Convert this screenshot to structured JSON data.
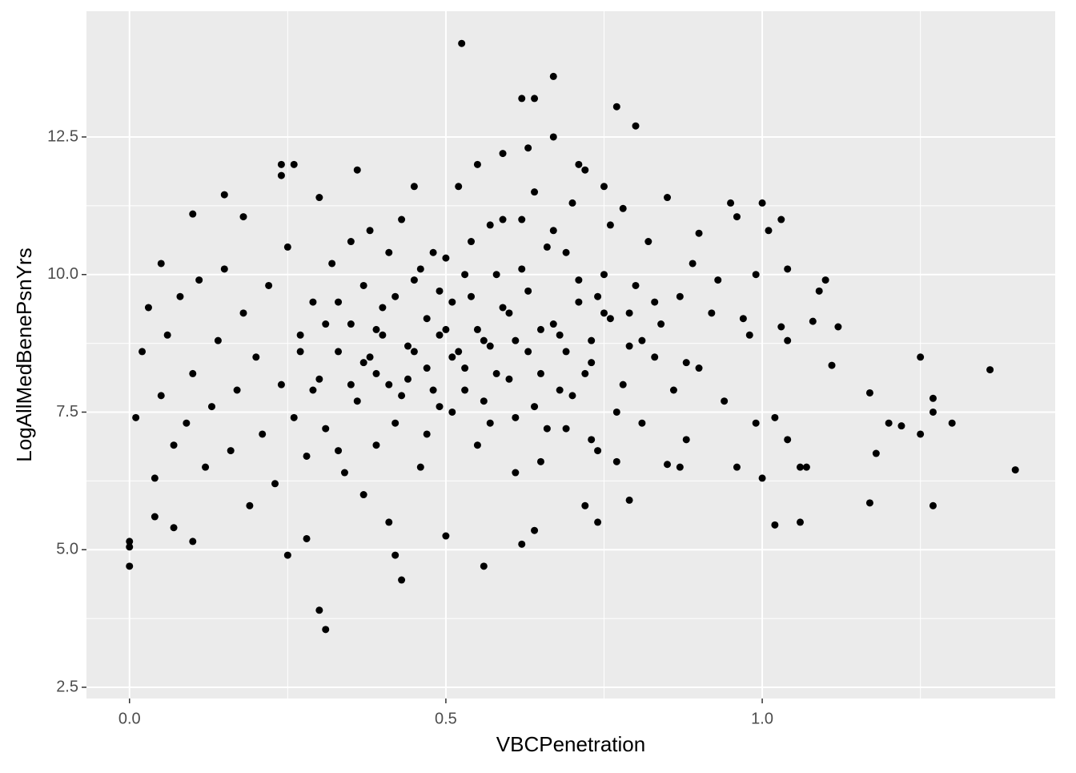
{
  "chart_data": {
    "type": "scatter",
    "x_label": "VBCPenetration",
    "y_label": "LogAllMedBenePsnYrs",
    "color": "#000000",
    "background": "#ebebeb",
    "grid": true,
    "xlim": [
      -0.068,
      1.463
    ],
    "ylim": [
      2.296,
      14.785
    ],
    "xticks": [
      {
        "value": 0,
        "label": "0.0"
      },
      0.5,
      {
        "value": 1,
        "label": "1.0"
      }
    ],
    "yticks": [
      2.5,
      {
        "value": 5,
        "label": "5.0"
      },
      7.5,
      {
        "value": 10,
        "label": "10.0"
      },
      12.5
    ],
    "xminor": [
      0.25,
      0.75,
      1.25
    ],
    "yminor": [
      3.75,
      6.25,
      8.75,
      11.25
    ],
    "x": [
      0,
      0,
      0,
      0.525,
      0.67,
      0.31,
      0.3,
      0.43,
      0.56,
      1.4,
      1.36,
      1.3,
      1.27,
      1.27,
      1.27,
      1.25,
      1.25,
      1.22,
      1.2,
      1.18,
      1.17,
      1.17,
      1.12,
      1.1,
      1.09,
      1.11,
      1.08,
      1.06,
      1.07,
      1.06,
      1.03,
      1.02,
      1.04,
      1.0,
      1.03,
      0.96,
      1.0,
      1.02,
      0.99,
      0.98,
      0.97,
      0.99,
      0.96,
      0.94,
      1.04,
      1.04,
      1.01,
      0.95,
      0.77,
      0.62,
      0.64,
      0.8,
      0.26,
      0.24,
      0.1,
      0.15,
      0.18,
      0.36,
      0.3,
      0.24,
      0.05,
      0.1,
      0.07,
      0.04,
      0.25,
      0.42,
      0.62,
      0.64,
      0.5,
      0.41,
      0.28,
      0.72,
      0.74,
      0.79,
      0.87,
      0.85,
      0.88,
      0.9,
      0.92,
      0.93,
      0.9,
      0.01,
      0.02,
      0.03,
      0.04,
      0.05,
      0.06,
      0.07,
      0.08,
      0.09,
      0.1,
      0.11,
      0.12,
      0.13,
      0.14,
      0.15,
      0.16,
      0.17,
      0.18,
      0.19,
      0.2,
      0.21,
      0.22,
      0.23,
      0.24,
      0.25,
      0.26,
      0.27,
      0.28,
      0.29,
      0.3,
      0.31,
      0.32,
      0.33,
      0.34,
      0.35,
      0.36,
      0.37,
      0.38,
      0.39,
      0.4,
      0.41,
      0.42,
      0.43,
      0.44,
      0.45,
      0.46,
      0.47,
      0.48,
      0.49,
      0.5,
      0.51,
      0.52,
      0.53,
      0.54,
      0.55,
      0.56,
      0.57,
      0.58,
      0.59,
      0.6,
      0.61,
      0.62,
      0.63,
      0.64,
      0.65,
      0.66,
      0.67,
      0.68,
      0.69,
      0.7,
      0.71,
      0.72,
      0.73,
      0.74,
      0.75,
      0.76,
      0.77,
      0.78,
      0.79,
      0.8,
      0.81,
      0.82,
      0.83,
      0.84,
      0.85,
      0.86,
      0.87,
      0.88,
      0.89,
      0.45,
      0.47,
      0.49,
      0.51,
      0.53,
      0.55,
      0.57,
      0.59,
      0.61,
      0.63,
      0.65,
      0.67,
      0.69,
      0.71,
      0.73,
      0.75,
      0.38,
      0.4,
      0.42,
      0.44,
      0.46,
      0.48,
      0.5,
      0.52,
      0.54,
      0.56,
      0.58,
      0.6,
      0.62,
      0.64,
      0.66,
      0.68,
      0.7,
      0.72,
      0.74,
      0.76,
      0.78,
      0.33,
      0.35,
      0.37,
      0.39,
      0.41,
      0.43,
      0.45,
      0.47,
      0.49,
      0.51,
      0.53,
      0.55,
      0.57,
      0.59,
      0.61,
      0.63,
      0.65,
      0.67,
      0.69,
      0.71,
      0.73,
      0.75,
      0.77,
      0.79,
      0.81,
      0.83,
      0.27,
      0.29,
      0.31,
      0.33,
      0.35,
      0.37,
      0.39
    ],
    "values": [
      4.7,
      5.05,
      5.15,
      14.2,
      13.6,
      3.55,
      3.9,
      4.45,
      4.7,
      6.45,
      8.27,
      7.3,
      5.8,
      7.5,
      7.75,
      8.5,
      7.1,
      7.25,
      7.3,
      6.75,
      5.85,
      7.85,
      9.05,
      9.9,
      9.7,
      8.35,
      9.15,
      6.5,
      6.5,
      5.5,
      9.05,
      7.4,
      8.8,
      11.3,
      11.0,
      11.05,
      6.3,
      5.45,
      7.3,
      8.9,
      9.2,
      10.0,
      6.5,
      7.7,
      7.0,
      10.1,
      10.8,
      11.3,
      13.05,
      13.2,
      13.2,
      12.7,
      12.0,
      12.0,
      11.1,
      11.45,
      11.05,
      11.9,
      11.4,
      11.8,
      10.2,
      5.15,
      5.4,
      5.6,
      4.9,
      4.9,
      5.1,
      5.35,
      5.25,
      5.5,
      5.2,
      5.8,
      5.5,
      5.9,
      6.5,
      6.55,
      7.0,
      8.3,
      9.3,
      9.9,
      10.75,
      7.4,
      8.6,
      9.4,
      6.3,
      7.8,
      8.9,
      6.9,
      9.6,
      7.3,
      8.2,
      9.9,
      6.5,
      7.6,
      8.8,
      10.1,
      6.8,
      7.9,
      9.3,
      5.8,
      8.5,
      7.1,
      9.8,
      6.2,
      8.0,
      10.5,
      7.4,
      8.9,
      6.7,
      9.5,
      8.1,
      7.2,
      10.2,
      8.6,
      6.4,
      9.1,
      7.7,
      8.4,
      10.8,
      6.9,
      9.4,
      8.0,
      7.3,
      11.0,
      8.7,
      9.9,
      6.5,
      8.3,
      10.4,
      7.6,
      9.0,
      8.5,
      11.6,
      7.9,
      9.6,
      6.9,
      8.8,
      10.9,
      8.2,
      12.2,
      9.3,
      7.4,
      10.1,
      8.6,
      11.5,
      9.0,
      7.2,
      12.5,
      8.9,
      10.4,
      7.8,
      9.5,
      11.9,
      8.4,
      6.8,
      10.0,
      9.2,
      7.5,
      11.2,
      8.7,
      9.8,
      7.3,
      10.6,
      8.5,
      9.1,
      11.4,
      7.9,
      9.6,
      8.4,
      10.2,
      8.6,
      9.2,
      8.9,
      9.5,
      8.3,
      9.0,
      8.7,
      9.4,
      8.8,
      9.7,
      8.2,
      9.1,
      8.6,
      9.9,
      8.8,
      9.3,
      8.5,
      8.9,
      9.6,
      8.1,
      10.1,
      7.9,
      10.3,
      8.6,
      10.6,
      7.7,
      10.0,
      8.1,
      11.0,
      7.6,
      10.5,
      7.9,
      11.3,
      8.2,
      9.6,
      10.9,
      8.0,
      9.5,
      8.0,
      9.8,
      8.2,
      10.4,
      7.8,
      11.6,
      7.1,
      9.7,
      7.5,
      10.0,
      12.0,
      7.3,
      11.0,
      6.4,
      12.3,
      6.6,
      10.8,
      7.2,
      12.0,
      7.0,
      11.6,
      6.6,
      9.3,
      8.8,
      9.5,
      8.6,
      7.9,
      9.1,
      6.8,
      10.6,
      6.0,
      9.0
    ]
  }
}
